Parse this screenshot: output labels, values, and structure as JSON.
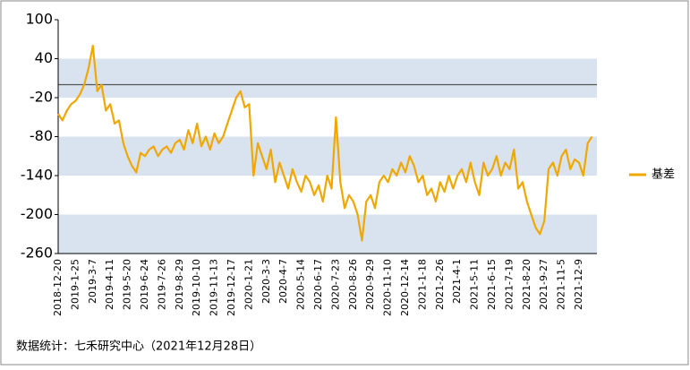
{
  "chart_data": {
    "type": "line",
    "source": "数据统计：七禾研究中心（2021年12月28日）",
    "categories": [
      "2018-12-20",
      null,
      null,
      null,
      "2019-1-25",
      null,
      null,
      null,
      "2019-3-7",
      null,
      null,
      null,
      "2019-4-11",
      null,
      null,
      null,
      "2019-5-20",
      null,
      null,
      null,
      "2019-6-24",
      null,
      null,
      null,
      "2019-7-26",
      null,
      null,
      null,
      "2019-8-29",
      null,
      null,
      null,
      "2019-10-10",
      null,
      null,
      null,
      "2019-11-13",
      null,
      null,
      null,
      "2019-12-17",
      null,
      null,
      null,
      "2020-1-21",
      null,
      null,
      null,
      "2020-3-3",
      null,
      null,
      null,
      "2020-4-7",
      null,
      null,
      null,
      "2020-5-14",
      null,
      null,
      null,
      "2020-6-17",
      null,
      null,
      null,
      "2020-7-23",
      null,
      null,
      null,
      "2020-8-26",
      null,
      null,
      null,
      "2020-9-29",
      null,
      null,
      null,
      "2020-11-10",
      null,
      null,
      null,
      "2020-12-14",
      null,
      null,
      null,
      "2021-1-18",
      null,
      null,
      null,
      "2021-2-26",
      null,
      null,
      null,
      "2021-4-1",
      null,
      null,
      null,
      "2021-5-11",
      null,
      null,
      null,
      "2021-6-15",
      null,
      null,
      null,
      "2021-7-19",
      null,
      null,
      null,
      "2021-8-20",
      null,
      null,
      null,
      "2021-9-27",
      null,
      null,
      null,
      "2021-11-5",
      null,
      null,
      null,
      "2021-12-9",
      null,
      null,
      null
    ],
    "series": [
      {
        "name": "基差",
        "color": "#f0a800",
        "values": [
          -45,
          -55,
          -40,
          -30,
          -25,
          -15,
          0,
          25,
          60,
          -10,
          0,
          -40,
          -30,
          -60,
          -55,
          -90,
          -110,
          -125,
          -135,
          -105,
          -110,
          -100,
          -95,
          -110,
          -100,
          -95,
          -105,
          -90,
          -85,
          -100,
          -70,
          -90,
          -60,
          -95,
          -80,
          -100,
          -75,
          -90,
          -80,
          -60,
          -40,
          -20,
          -10,
          -35,
          -30,
          -140,
          -90,
          -110,
          -130,
          -100,
          -150,
          -120,
          -140,
          -160,
          -130,
          -150,
          -165,
          -140,
          -150,
          -170,
          -155,
          -180,
          -140,
          -160,
          -50,
          -150,
          -190,
          -170,
          -180,
          -200,
          -240,
          -180,
          -170,
          -190,
          -150,
          -140,
          -150,
          -130,
          -140,
          -120,
          -135,
          -110,
          -125,
          -150,
          -140,
          -170,
          -160,
          -180,
          -150,
          -165,
          -140,
          -160,
          -140,
          -130,
          -150,
          -120,
          -150,
          -170,
          -120,
          -140,
          -130,
          -110,
          -140,
          -120,
          -130,
          -100,
          -160,
          -150,
          -180,
          -200,
          -220,
          -230,
          -210,
          -130,
          -120,
          -140,
          -110,
          -100,
          -130,
          -115,
          -120,
          -140,
          -90,
          -80
        ]
      }
    ],
    "ylim": [
      -260,
      100
    ],
    "yticks": [
      100,
      40,
      -20,
      -80,
      -140,
      -200,
      -260
    ],
    "bands": true,
    "legend": "right"
  }
}
